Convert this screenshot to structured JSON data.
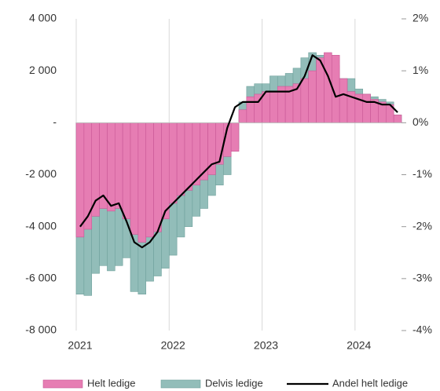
{
  "chart_data": {
    "type": "bar_line",
    "categories": [
      "2021",
      null,
      null,
      null,
      null,
      null,
      null,
      null,
      null,
      null,
      null,
      null,
      "2022",
      null,
      null,
      null,
      null,
      null,
      null,
      null,
      null,
      null,
      null,
      null,
      "2023",
      null,
      null,
      null,
      null,
      null,
      null,
      null,
      null,
      null,
      null,
      null,
      "2024",
      null,
      null,
      null,
      null,
      null
    ],
    "series": [
      {
        "name": "Delvis ledige",
        "color": "#92bdb9",
        "type": "bar",
        "values": [
          -6600,
          -6650,
          -5800,
          -5500,
          -5700,
          -5500,
          -5200,
          -6500,
          -6600,
          -6100,
          -5900,
          -5600,
          -5100,
          -4400,
          -4000,
          -3600,
          -3300,
          -2800,
          -2400,
          -2000,
          -1000,
          800,
          1400,
          1500,
          1500,
          1800,
          1800,
          1900,
          2100,
          2500,
          2700,
          2600,
          2600,
          2200,
          1700,
          1700,
          1300,
          1100,
          1000,
          900,
          800,
          300
        ]
      },
      {
        "name": "Helt ledige",
        "color": "#e67db3",
        "type": "bar",
        "values": [
          -4400,
          -4100,
          -3600,
          -3300,
          -3400,
          -3300,
          -3700,
          -4300,
          -4600,
          -4400,
          -4200,
          -3700,
          -3100,
          -2800,
          -2600,
          -2400,
          -2200,
          -2000,
          -1600,
          -1300,
          -1100,
          500,
          1000,
          1100,
          1200,
          1200,
          1400,
          1400,
          1500,
          1700,
          2000,
          2500,
          2700,
          2600,
          1700,
          1200,
          1100,
          1100,
          900,
          800,
          700,
          300
        ]
      },
      {
        "name": "Andel helt ledige",
        "color": "#000000",
        "type": "line",
        "axis": "y2",
        "values": [
          -2.0,
          -1.8,
          -1.5,
          -1.4,
          -1.6,
          -1.55,
          -1.9,
          -2.3,
          -2.4,
          -2.3,
          -2.1,
          -1.7,
          -1.55,
          -1.4,
          -1.25,
          -1.1,
          -0.95,
          -0.8,
          -0.75,
          -0.1,
          0.3,
          0.4,
          0.4,
          0.4,
          0.6,
          0.6,
          0.6,
          0.6,
          0.65,
          0.9,
          1.3,
          1.2,
          0.9,
          0.5,
          0.55,
          0.5,
          0.45,
          0.4,
          0.4,
          0.35,
          0.35,
          0.2
        ]
      }
    ],
    "ylim": [
      -8000,
      4000
    ],
    "yticks": [
      {
        "value": -8000,
        "label": "-8 000"
      },
      {
        "value": -6000,
        "label": "-6 000"
      },
      {
        "value": -4000,
        "label": "-4 000"
      },
      {
        "value": -2000,
        "label": "-2 000"
      },
      {
        "value": 0,
        "label": "-"
      },
      {
        "value": 2000,
        "label": "2 000"
      },
      {
        "value": 4000,
        "label": "4 000"
      }
    ],
    "y2lim": [
      -4,
      2
    ],
    "y2ticks": [
      {
        "value": -4,
        "label": "-4%"
      },
      {
        "value": -3,
        "label": "-3%"
      },
      {
        "value": -2,
        "label": "-2%"
      },
      {
        "value": -1,
        "label": "-1%"
      },
      {
        "value": 0,
        "label": "0%"
      },
      {
        "value": 1,
        "label": "1%"
      },
      {
        "value": 2,
        "label": "2%"
      }
    ],
    "grid": true,
    "legend": "bottom"
  }
}
